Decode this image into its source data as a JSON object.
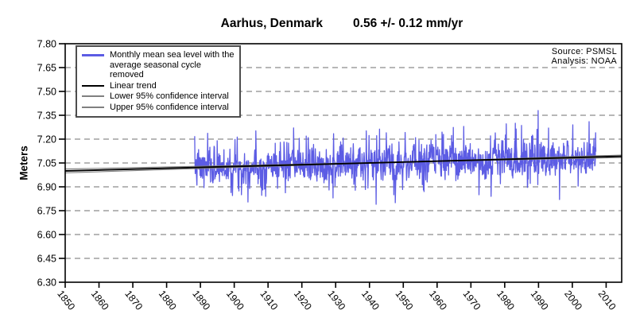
{
  "title": {
    "station": "Aarhus, Denmark",
    "trend_annotation": "0.56 +/- 0.12 mm/yr"
  },
  "source_note": {
    "line1": "Source: PSMSL",
    "line2": "Analysis: NOAA"
  },
  "colors": {
    "series_blue": "#5c5ce4",
    "trend_black": "#000000",
    "ci_gray": "#808080",
    "grid_gray": "#8c8c8c",
    "border_black": "#000000"
  },
  "chart_data": {
    "type": "line",
    "title": "Aarhus, Denmark",
    "annotation": "0.56 +/- 0.12 mm/yr",
    "xlabel": "",
    "ylabel": "Meters",
    "xlim": [
      1850,
      2014.6
    ],
    "ylim": [
      6.3,
      7.8
    ],
    "x_ticks": [
      1850,
      1860,
      1870,
      1880,
      1890,
      1900,
      1910,
      1920,
      1930,
      1940,
      1950,
      1960,
      1970,
      1980,
      1990,
      2000,
      2010
    ],
    "y_ticks": [
      7.8,
      7.65,
      7.5,
      7.35,
      7.2,
      7.05,
      6.9,
      6.75,
      6.6,
      6.45,
      6.3
    ],
    "y_tick_labels": [
      "7.80",
      "7.65",
      "7.50",
      "7.35",
      "7.20",
      "7.05",
      "6.90",
      "6.75",
      "6.60",
      "6.45",
      "6.30"
    ],
    "grid": "horizontal-dashed",
    "legend_position": "top-left",
    "series": [
      {
        "name": "Monthly mean sea level with the average seasonal cycle removed",
        "type": "monthly_noisy",
        "color": "#5c5ce4",
        "start_year": 1888.3,
        "end_year": 2007.0,
        "samples_per_year": 12,
        "trend_start_value": 7.021,
        "trend_end_value": 7.088,
        "noise_sd": 0.06,
        "ar1": 0.3,
        "seed": 7,
        "extremes": [
          [
            1895.0,
            7.19
          ],
          [
            1902.1,
            6.85
          ],
          [
            1908.5,
            6.88
          ],
          [
            1913.6,
            7.18
          ],
          [
            1921.9,
            7.21
          ],
          [
            1929.2,
            6.83
          ],
          [
            1942.0,
            6.79
          ],
          [
            1947.2,
            6.85
          ],
          [
            1956.1,
            6.87
          ],
          [
            1961.9,
            7.23
          ],
          [
            1967.9,
            7.28
          ],
          [
            1976.0,
            6.84
          ],
          [
            1983.1,
            7.3
          ],
          [
            1989.9,
            7.38
          ],
          [
            1993.0,
            7.27
          ],
          [
            1996.2,
            6.82
          ],
          [
            2000.1,
            7.29
          ],
          [
            2005.0,
            7.31
          ],
          [
            2006.9,
            7.24
          ]
        ],
        "observed_min": 6.78,
        "observed_max": 7.38
      },
      {
        "name": "Linear trend",
        "color": "#000000",
        "slope_mm_per_yr": 0.56,
        "x": [
          1850,
          2014.6
        ],
        "y": [
          7.0,
          7.092
        ]
      },
      {
        "name": "Lower 95% confidence interval",
        "color": "#808080",
        "x": [
          1850,
          2014.6
        ],
        "y": [
          7.012,
          7.084
        ]
      },
      {
        "name": "Upper 95% confidence interval",
        "color": "#808080",
        "x": [
          1850,
          2014.6
        ],
        "y": [
          6.988,
          7.1
        ]
      }
    ]
  }
}
